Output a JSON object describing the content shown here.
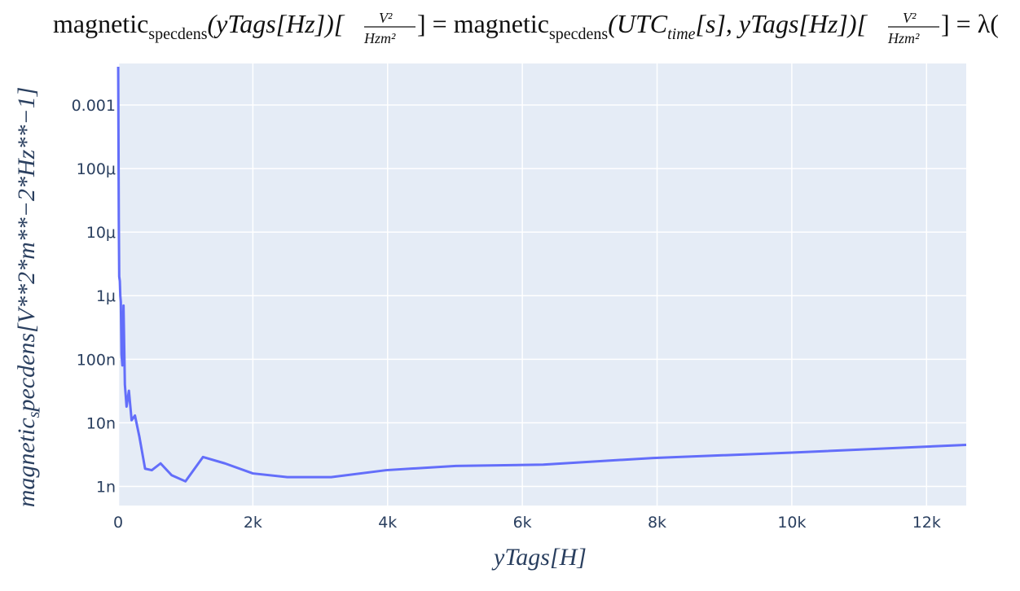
{
  "title": {
    "part1": "magnetic",
    "part1_sub": "specdens",
    "part2": "(yTags[Hz])[",
    "frac_num": "V²",
    "frac_den": "Hzm²",
    "part3": "] = magnetic",
    "part3_sub": "specdens",
    "part4": "(UTC",
    "part4_sub": "time",
    "part5": "[s], yTags[Hz])[",
    "part6": "] = λ("
  },
  "colors": {
    "plot_bg": "#e5ecf6",
    "grid": "#ffffff",
    "line": "#636efa",
    "tick": "#2a3f5f"
  },
  "chart_data": {
    "type": "line",
    "title": "magnetic_specdens(yTags[Hz])[V^2/(Hz m^2)] = magnetic_specdens(UTC_time[s], yTags[Hz])[V^2/(Hz m^2)] = λ(",
    "xlabel": "yTags[H]",
    "ylabel": "magnetic_specdens[V**2*m**-2*Hz**-1]",
    "ylabel_main": "magnetic",
    "ylabel_sub": "s",
    "ylabel_rest": "pecdens[V**2*m**−2*Hz**−1]",
    "yscale": "log",
    "xlim": [
      0,
      12589
    ],
    "ylim": [
      5e-10,
      0.0045
    ],
    "grid": true,
    "x_ticks": [
      {
        "value": 0,
        "label": "0"
      },
      {
        "value": 2000,
        "label": "2k"
      },
      {
        "value": 4000,
        "label": "4k"
      },
      {
        "value": 6000,
        "label": "6k"
      },
      {
        "value": 8000,
        "label": "8k"
      },
      {
        "value": 10000,
        "label": "10k"
      },
      {
        "value": 12000,
        "label": "12k"
      }
    ],
    "y_ticks": [
      {
        "value": 1e-09,
        "label": "1n"
      },
      {
        "value": 1e-08,
        "label": "10n"
      },
      {
        "value": 1e-07,
        "label": "100n"
      },
      {
        "value": 1e-06,
        "label": "1μ"
      },
      {
        "value": 1e-05,
        "label": "10μ"
      },
      {
        "value": 0.0001,
        "label": "100μ"
      },
      {
        "value": 0.001,
        "label": "0.001"
      }
    ],
    "series": [
      {
        "x": [
          1,
          10,
          16,
          25,
          32,
          40,
          50,
          63,
          80,
          100,
          125,
          160,
          200,
          250,
          316,
          400,
          500,
          630,
          794,
          1000,
          1260,
          1585,
          2000,
          2512,
          3162,
          3981,
          5012,
          6310,
          7943,
          10000,
          12589
        ],
        "y": [
          0.004,
          1.5e-05,
          2e-06,
          1.7e-06,
          1e-06,
          8e-07,
          1.2e-07,
          8e-08,
          7e-07,
          4e-08,
          1.8e-08,
          3.2e-08,
          1.1e-08,
          1.3e-08,
          6e-09,
          1.9e-09,
          1.8e-09,
          2.3e-09,
          1.5e-09,
          1.2e-09,
          2.9e-09,
          2.3e-09,
          1.6e-09,
          1.4e-09,
          1.4e-09,
          1.8e-09,
          2.1e-09,
          2.2e-09,
          2.8e-09,
          3.4e-09,
          4.5e-09
        ]
      }
    ]
  }
}
